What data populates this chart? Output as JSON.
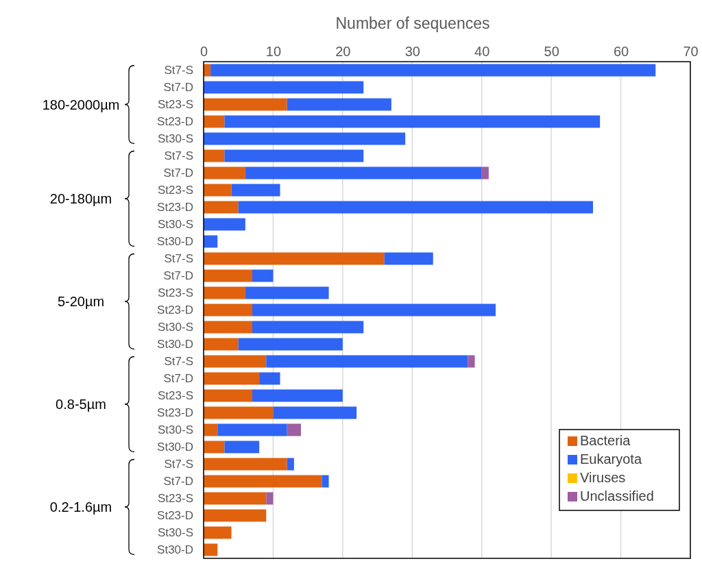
{
  "chart_data": {
    "type": "bar",
    "orientation": "horizontal",
    "stacked": true,
    "xlabel": "Number of sequences",
    "categories": [
      "St7-S",
      "St7-D",
      "St23-S",
      "St23-D",
      "St30-S",
      "St7-S",
      "St7-D",
      "St23-S",
      "St23-D",
      "St30-S",
      "St30-D",
      "St7-S",
      "St7-D",
      "St23-S",
      "St23-D",
      "St30-S",
      "St30-D",
      "St7-S",
      "St7-D",
      "St23-S",
      "St23-D",
      "St30-S",
      "St30-D",
      "St7-S",
      "St7-D",
      "St23-S",
      "St23-D",
      "St30-S",
      "St30-D"
    ],
    "annotations": [
      "180-2000µm",
      "20-180µm",
      "5-20µm",
      "0.8-5µm",
      "0.2-1.6µm"
    ],
    "series": [
      {
        "name": "Bacteria",
        "color": "#e0620e",
        "values": [
          1,
          0,
          12,
          3,
          0,
          3,
          6,
          4,
          5,
          0,
          0,
          26,
          7,
          6,
          7,
          7,
          5,
          9,
          8,
          7,
          10,
          2,
          3,
          12,
          17,
          9,
          9,
          4,
          2
        ]
      },
      {
        "name": "Eukaryota",
        "color": "#2f64f5",
        "values": [
          64,
          23,
          15,
          54,
          29,
          20,
          34,
          7,
          51,
          6,
          2,
          7,
          3,
          12,
          35,
          16,
          15,
          29,
          3,
          13,
          12,
          10,
          5,
          1,
          1,
          0,
          0,
          0,
          0
        ]
      },
      {
        "name": "Viruses",
        "color": "#ffc000",
        "values": [
          0,
          0,
          0,
          0,
          0,
          0,
          0,
          0,
          0,
          0,
          0,
          0,
          0,
          0,
          0,
          0,
          0,
          0,
          0,
          0,
          0,
          0,
          0,
          0,
          0,
          0,
          0,
          0,
          0
        ]
      },
      {
        "name": "Unclassified",
        "color": "#9e5fa0",
        "values": [
          0,
          0,
          0,
          0,
          0,
          0,
          1,
          0,
          0,
          0,
          0,
          0,
          0,
          0,
          0,
          0,
          0,
          1,
          0,
          0,
          0,
          2,
          0,
          0,
          0,
          1,
          0,
          0,
          0
        ]
      }
    ],
    "xlim": [
      0,
      70
    ],
    "xticks": [
      0,
      10,
      20,
      30,
      40,
      50,
      60,
      70
    ],
    "grid": "x",
    "legend": "bottom right"
  }
}
